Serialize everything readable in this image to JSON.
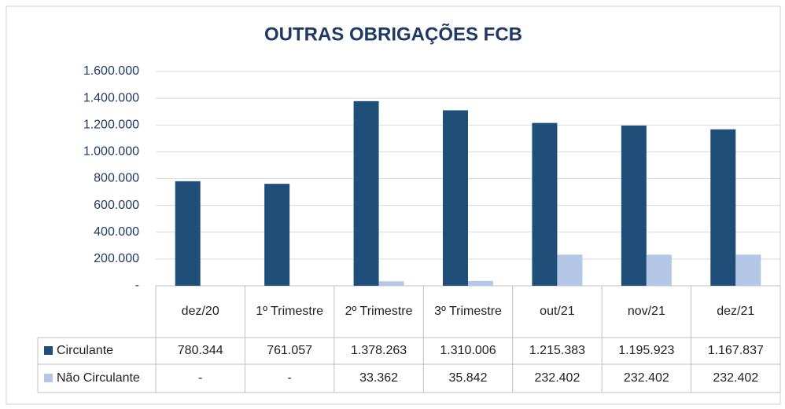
{
  "chart_data": {
    "type": "bar",
    "title": "OUTRAS OBRIGAÇÕES FCB",
    "categories": [
      "dez/20",
      "1º Trimestre",
      "2º Trimestre",
      "3º Trimestre",
      "out/21",
      "nov/21",
      "dez/21"
    ],
    "series": [
      {
        "name": "Circulante",
        "color": "#1f4e79",
        "values": [
          780344,
          761057,
          1378263,
          1310006,
          1215383,
          1195923,
          1167837
        ],
        "value_labels": [
          "780.344",
          "761.057",
          "1.378.263",
          "1.310.006",
          "1.215.383",
          "1.195.923",
          "1.167.837"
        ]
      },
      {
        "name": "Não Circulante",
        "color": "#b4c7e7",
        "values": [
          0,
          0,
          33362,
          35842,
          232402,
          232402,
          232402
        ],
        "value_labels": [
          "-",
          "-",
          "33.362",
          "35.842",
          "232.402",
          "232.402",
          "232.402"
        ]
      }
    ],
    "ylim": [
      0,
      1600000
    ],
    "yticks": [
      {
        "value": 0,
        "label": "-"
      },
      {
        "value": 200000,
        "label": "200.000"
      },
      {
        "value": 400000,
        "label": "400.000"
      },
      {
        "value": 600000,
        "label": "600.000"
      },
      {
        "value": 800000,
        "label": "800.000"
      },
      {
        "value": 1000000,
        "label": "1.000.000"
      },
      {
        "value": 1200000,
        "label": "1.200.000"
      },
      {
        "value": 1400000,
        "label": "1.400.000"
      },
      {
        "value": 1600000,
        "label": "1.600.000"
      }
    ],
    "grid": true
  }
}
